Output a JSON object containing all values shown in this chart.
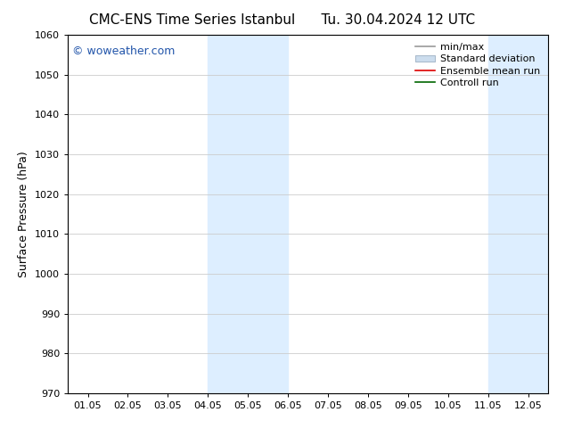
{
  "title_left": "CMC-ENS Time Series Istanbul",
  "title_right": "Tu. 30.04.2024 12 UTC",
  "ylabel": "Surface Pressure (hPa)",
  "xlabel": "",
  "ylim": [
    970,
    1060
  ],
  "yticks": [
    970,
    980,
    990,
    1000,
    1010,
    1020,
    1030,
    1040,
    1050,
    1060
  ],
  "xtick_labels": [
    "01.05",
    "02.05",
    "03.05",
    "04.05",
    "05.05",
    "06.05",
    "07.05",
    "08.05",
    "09.05",
    "10.05",
    "11.05",
    "12.05"
  ],
  "xtick_positions": [
    0,
    1,
    2,
    3,
    4,
    5,
    6,
    7,
    8,
    9,
    10,
    11
  ],
  "xlim": [
    -0.5,
    11.5
  ],
  "shaded_bands": [
    {
      "xmin": 3.0,
      "xmax": 5.0
    },
    {
      "xmin": 10.0,
      "xmax": 11.5
    }
  ],
  "band_color": "#ddeeff",
  "watermark": "© woweather.com",
  "watermark_color": "#2255aa",
  "background_color": "#ffffff",
  "legend_items": [
    {
      "label": "min/max",
      "color": "#999999",
      "lw": 1.2,
      "style": "solid"
    },
    {
      "label": "Standard deviation",
      "color": "#ccddee",
      "lw": 6,
      "style": "solid"
    },
    {
      "label": "Ensemble mean run",
      "color": "#dd0000",
      "lw": 1.2,
      "style": "solid"
    },
    {
      "label": "Controll run",
      "color": "#006600",
      "lw": 1.2,
      "style": "solid"
    }
  ],
  "grid_color": "#cccccc",
  "title_fontsize": 11,
  "tick_fontsize": 8,
  "ylabel_fontsize": 9,
  "watermark_fontsize": 9,
  "legend_fontsize": 8
}
